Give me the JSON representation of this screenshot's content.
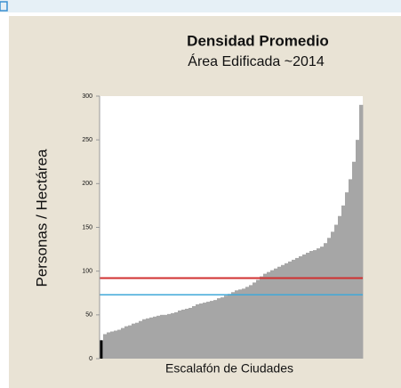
{
  "chart_data": {
    "type": "bar",
    "title": "Densidad Promedio",
    "subtitle": "Área Edificada ~2014",
    "y_label": "Personas / Hectárea",
    "x_label": "Escalafón de Ciudades",
    "values": [
      21,
      28,
      30,
      31,
      32,
      33,
      35,
      37,
      38,
      40,
      41,
      43,
      45,
      46,
      47,
      48,
      49,
      50,
      50,
      51,
      52,
      53,
      55,
      56,
      57,
      58,
      60,
      62,
      63,
      64,
      65,
      66,
      67,
      69,
      70,
      72,
      74,
      76,
      78,
      79,
      80,
      82,
      84,
      87,
      90,
      94,
      97,
      99,
      101,
      103,
      105,
      107,
      109,
      111,
      113,
      115,
      117,
      119,
      121,
      123,
      124,
      126,
      128,
      132,
      138,
      145,
      153,
      163,
      175,
      190,
      205,
      225,
      250,
      290
    ],
    "color": "#a6a6a6",
    "highlight_index": 0,
    "highlight_color": "#000000",
    "reference_lines": [
      {
        "value": 92,
        "color": "#d03030"
      },
      {
        "value": 73,
        "color": "#40a8d8"
      }
    ],
    "ylim": [
      0,
      300
    ],
    "yticks": [
      0,
      50,
      100,
      150,
      200,
      250,
      300
    ]
  }
}
